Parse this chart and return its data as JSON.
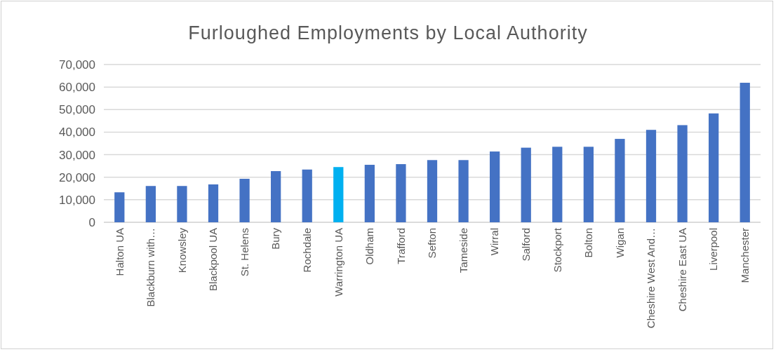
{
  "chart_data": {
    "type": "bar",
    "title": "Furloughed Employments by Local Authority",
    "categories": [
      "Halton UA",
      "Blackburn with…",
      "Knowsley",
      "Blackpool UA",
      "St. Helens",
      "Bury",
      "Rochdale",
      "Warrington UA",
      "Oldham",
      "Trafford",
      "Sefton",
      "Tameside",
      "Wirral",
      "Salford",
      "Stockport",
      "Bolton",
      "Wigan",
      "Cheshire West And…",
      "Cheshire East UA",
      "Liverpool",
      "Manchester"
    ],
    "values": [
      13300,
      16100,
      16100,
      16800,
      19300,
      22700,
      23400,
      24500,
      25500,
      25800,
      27600,
      27600,
      31400,
      33100,
      33500,
      33500,
      37000,
      41000,
      43100,
      48300,
      61900
    ],
    "colors": [
      "#4472c4",
      "#4472c4",
      "#4472c4",
      "#4472c4",
      "#4472c4",
      "#4472c4",
      "#4472c4",
      "#00b0f0",
      "#4472c4",
      "#4472c4",
      "#4472c4",
      "#4472c4",
      "#4472c4",
      "#4472c4",
      "#4472c4",
      "#4472c4",
      "#4472c4",
      "#4472c4",
      "#4472c4",
      "#4472c4",
      "#4472c4"
    ],
    "ylim": [
      0,
      70000
    ],
    "yticks": [
      {
        "value": 0,
        "label": "0"
      },
      {
        "value": 10000,
        "label": "10,000"
      },
      {
        "value": 20000,
        "label": "20,000"
      },
      {
        "value": 30000,
        "label": "30,000"
      },
      {
        "value": 40000,
        "label": "40,000"
      },
      {
        "value": 50000,
        "label": "50,000"
      },
      {
        "value": 60000,
        "label": "60,000"
      },
      {
        "value": 70000,
        "label": "70,000"
      }
    ],
    "grid": "y"
  }
}
